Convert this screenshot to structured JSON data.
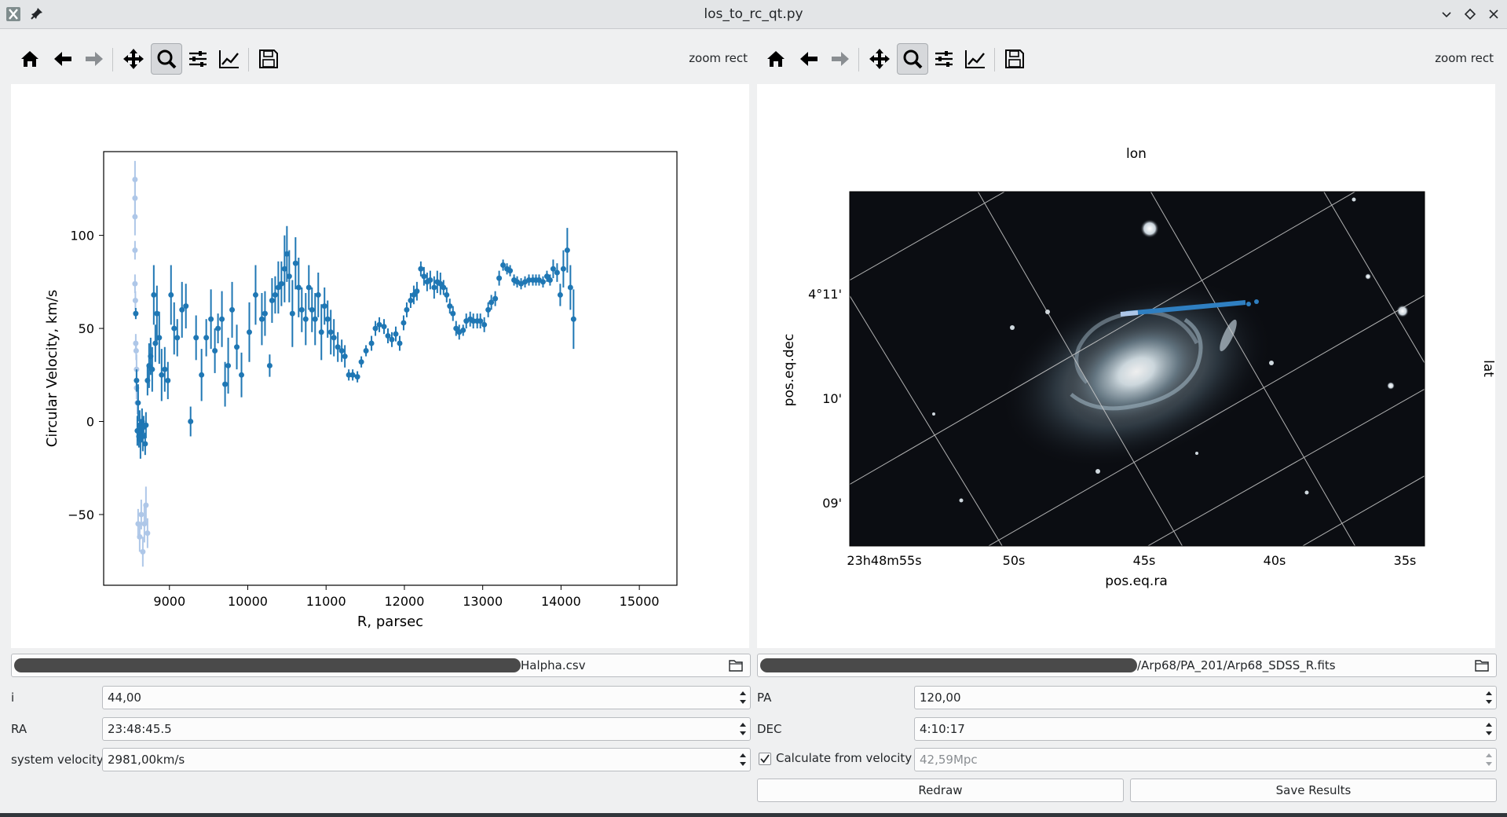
{
  "window": {
    "title": "los_to_rc_qt.py"
  },
  "toolbar": {
    "zoom_label": "zoom rect"
  },
  "left_plot": {
    "xlabel": "R, parsec",
    "ylabel": "Circular Velocity, km/s",
    "xticks": [
      "9000",
      "10000",
      "11000",
      "12000",
      "13000",
      "14000",
      "15000"
    ],
    "yticks": [
      "−50",
      "0",
      "50",
      "100"
    ],
    "chart_data": {
      "type": "scatter",
      "xlim": [
        8160,
        15480
      ],
      "ylim": [
        -88,
        145
      ],
      "xlabel": "R, parsec",
      "ylabel": "Circular Velocity, km/s",
      "grid": false,
      "series": [
        {
          "color": "#1f77b4",
          "points": [
            [
              8570,
              58,
              3
            ],
            [
              8580,
              22,
              6
            ],
            [
              8590,
              -5,
              8
            ],
            [
              8600,
              10,
              10
            ],
            [
              8610,
              -8,
              6
            ],
            [
              8620,
              -2,
              8
            ],
            [
              8630,
              -10,
              10
            ],
            [
              8640,
              -5,
              6
            ],
            [
              8650,
              0,
              7
            ],
            [
              8660,
              -8,
              8
            ],
            [
              8670,
              -3,
              6
            ],
            [
              8690,
              -12,
              6
            ],
            [
              8700,
              -2,
              7
            ],
            [
              8720,
              22,
              8
            ],
            [
              8740,
              30,
              12
            ],
            [
              8760,
              35,
              10
            ],
            [
              8780,
              28,
              12
            ],
            [
              8800,
              68,
              16
            ],
            [
              8820,
              42,
              10
            ],
            [
              8840,
              58,
              15
            ],
            [
              8870,
              45,
              14
            ],
            [
              8900,
              25,
              14
            ],
            [
              8940,
              28,
              12
            ],
            [
              8980,
              22,
              10
            ],
            [
              9020,
              68,
              16
            ],
            [
              9060,
              50,
              14
            ],
            [
              9100,
              45,
              10
            ],
            [
              9160,
              60,
              15
            ],
            [
              9210,
              62,
              12
            ],
            [
              9270,
              0,
              8
            ],
            [
              9340,
              45,
              12
            ],
            [
              9410,
              25,
              14
            ],
            [
              9470,
              45,
              10
            ],
            [
              9530,
              55,
              16
            ],
            [
              9580,
              38,
              12
            ],
            [
              9620,
              50,
              8
            ],
            [
              9670,
              55,
              15
            ],
            [
              9710,
              20,
              12
            ],
            [
              9750,
              30,
              15
            ],
            [
              9800,
              60,
              15
            ],
            [
              9860,
              40,
              12
            ],
            [
              9920,
              25,
              12
            ],
            [
              10020,
              48,
              16
            ],
            [
              10100,
              68,
              16
            ],
            [
              10180,
              55,
              14
            ],
            [
              10220,
              58,
              12
            ],
            [
              10280,
              30,
              6
            ],
            [
              10310,
              65,
              12
            ],
            [
              10350,
              68,
              10
            ],
            [
              10390,
              72,
              14
            ],
            [
              10430,
              74,
              12
            ],
            [
              10470,
              82,
              18
            ],
            [
              10500,
              90,
              15
            ],
            [
              10530,
              78,
              14
            ],
            [
              10570,
              58,
              18
            ],
            [
              10610,
              85,
              14
            ],
            [
              10650,
              72,
              16
            ],
            [
              10690,
              60,
              12
            ],
            [
              10740,
              55,
              14
            ],
            [
              10780,
              72,
              12
            ],
            [
              10820,
              60,
              12
            ],
            [
              10860,
              55,
              14
            ],
            [
              10900,
              68,
              12
            ],
            [
              10940,
              48,
              15
            ],
            [
              10980,
              62,
              10
            ],
            [
              11020,
              55,
              10
            ],
            [
              11060,
              48,
              12
            ],
            [
              11100,
              45,
              10
            ],
            [
              11150,
              40,
              8
            ],
            [
              11200,
              38,
              6
            ],
            [
              11240,
              35,
              6
            ],
            [
              11290,
              25,
              3
            ],
            [
              11340,
              25,
              3
            ],
            [
              11400,
              24,
              3
            ],
            [
              11450,
              32,
              3
            ],
            [
              11510,
              38,
              3
            ],
            [
              11580,
              42,
              4
            ],
            [
              11630,
              50,
              4
            ],
            [
              11680,
              52,
              4
            ],
            [
              11740,
              51,
              4
            ],
            [
              11790,
              46,
              4
            ],
            [
              11840,
              44,
              4
            ],
            [
              11890,
              47,
              4
            ],
            [
              11940,
              42,
              4
            ],
            [
              11990,
              53,
              4
            ],
            [
              12030,
              60,
              4
            ],
            [
              12080,
              65,
              4
            ],
            [
              12120,
              68,
              5
            ],
            [
              12160,
              70,
              5
            ],
            [
              12210,
              82,
              4
            ],
            [
              12250,
              78,
              5
            ],
            [
              12290,
              75,
              5
            ],
            [
              12330,
              76,
              5
            ],
            [
              12380,
              72,
              6
            ],
            [
              12420,
              75,
              6
            ],
            [
              12460,
              74,
              6
            ],
            [
              12500,
              72,
              4
            ],
            [
              12540,
              68,
              4
            ],
            [
              12580,
              62,
              4
            ],
            [
              12620,
              58,
              4
            ],
            [
              12660,
              50,
              4
            ],
            [
              12700,
              48,
              4
            ],
            [
              12750,
              49,
              3
            ],
            [
              12790,
              54,
              4
            ],
            [
              12840,
              55,
              4
            ],
            [
              12880,
              54,
              4
            ],
            [
              12930,
              54,
              4
            ],
            [
              12970,
              54,
              4
            ],
            [
              13020,
              52,
              4
            ],
            [
              13070,
              60,
              4
            ],
            [
              13110,
              64,
              4
            ],
            [
              13160,
              66,
              4
            ],
            [
              13210,
              77,
              4
            ],
            [
              13260,
              84,
              3
            ],
            [
              13310,
              82,
              3
            ],
            [
              13350,
              81,
              3
            ],
            [
              13400,
              76,
              3
            ],
            [
              13440,
              75,
              3
            ],
            [
              13490,
              74,
              3
            ],
            [
              13540,
              75,
              3
            ],
            [
              13590,
              76,
              3
            ],
            [
              13640,
              76,
              3
            ],
            [
              13680,
              76,
              3
            ],
            [
              13720,
              76,
              3
            ],
            [
              13770,
              75,
              3
            ],
            [
              13820,
              78,
              3
            ],
            [
              13860,
              76,
              3
            ],
            [
              13900,
              82,
              5
            ],
            [
              13950,
              80,
              5
            ],
            [
              13990,
              68,
              6
            ],
            [
              14030,
              82,
              10
            ],
            [
              14080,
              92,
              12
            ],
            [
              14120,
              72,
              12
            ],
            [
              14160,
              55,
              16
            ]
          ]
        },
        {
          "color": "#aec7e8",
          "points": [
            [
              8560,
              130,
              10
            ],
            [
              8560,
              120,
              10
            ],
            [
              8560,
              110,
              10
            ],
            [
              8560,
              92,
              5
            ],
            [
              8560,
              74,
              5
            ],
            [
              8565,
              65,
              5
            ],
            [
              8570,
              42,
              5
            ],
            [
              8575,
              38,
              5
            ],
            [
              8580,
              28,
              8
            ],
            [
              8580,
              18,
              6
            ],
            [
              8590,
              10,
              6
            ],
            [
              8600,
              -55,
              8
            ],
            [
              8620,
              -62,
              8
            ],
            [
              8640,
              -50,
              8
            ],
            [
              8660,
              -70,
              8
            ],
            [
              8680,
              -55,
              10
            ],
            [
              8700,
              -45,
              10
            ],
            [
              8720,
              -60,
              8
            ]
          ]
        }
      ]
    }
  },
  "right_plot": {
    "top_axis_label": "lon",
    "right_axis_label": "lat",
    "xlabel": "pos.eq.ra",
    "ylabel": "pos.eq.dec",
    "yticks": [
      "4°11'",
      "10'",
      "09'"
    ],
    "xticks": [
      "23h48m55s",
      "50s",
      "45s",
      "40s",
      "35s"
    ],
    "colormap": "bone"
  },
  "controls": {
    "left_file": {
      "suffix": "Halpha.csv"
    },
    "right_file": {
      "suffix": "/Arp68/PA_201/Arp68_SDSS_R.fits"
    },
    "i": {
      "label": "i",
      "value": "44,00"
    },
    "pa": {
      "label": "PA",
      "value": "120,00"
    },
    "ra": {
      "label": "RA",
      "value": "23:48:45.5"
    },
    "dec": {
      "label": "DEC",
      "value": "4:10:17"
    },
    "velocity": {
      "label": "system velocity",
      "value": "2981,00km/s"
    },
    "calc": {
      "label": "Calculate from velocity",
      "checked": true
    },
    "distance": {
      "value": "42,59Mpc"
    },
    "redraw_label": "Redraw",
    "save_label": "Save Results"
  }
}
